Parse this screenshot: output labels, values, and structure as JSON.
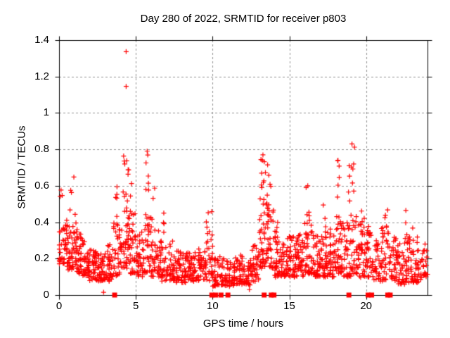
{
  "chart_data": {
    "type": "scatter",
    "title": "Day 280 of 2022, SRMTID for receiver p803",
    "xlabel": "GPS time / hours",
    "ylabel": "SRMTID / TECUs",
    "xlim": [
      0,
      24
    ],
    "ylim": [
      0,
      1.4
    ],
    "xticks": [
      [
        0,
        "0"
      ],
      [
        5,
        "5"
      ],
      [
        10,
        "10"
      ],
      [
        15,
        "15"
      ],
      [
        20,
        "20"
      ]
    ],
    "yticks": [
      [
        0,
        "0"
      ],
      [
        0.2,
        "0.2"
      ],
      [
        0.4,
        "0.4"
      ],
      [
        0.6,
        "0.6"
      ],
      [
        0.8,
        "0.8"
      ],
      [
        1,
        "1"
      ],
      [
        1.2,
        "1.2"
      ],
      [
        1.4,
        "1.4"
      ]
    ],
    "grid": {
      "show": true,
      "color": "#909090",
      "dash": [
        3,
        3
      ],
      "x_lines": [
        5,
        10,
        15,
        20
      ],
      "y_lines": [
        0.2,
        0.4,
        0.6,
        0.8,
        1.0,
        1.2
      ]
    },
    "legend": "none",
    "marker": {
      "shape": "plus",
      "color": "#ff0000",
      "size": 7
    },
    "background": "#ffffff",
    "border_color": "#000000",
    "series_description": "SRMTID (TECU) vs GPS time; quiet band ~0.05-0.4 with activity spikes near 04:30 (max 1.34), 06:00, 13:30, 16:15 and 18:00-19:30; red squares on the x-axis flag epochs with value 0",
    "seed": 280,
    "band_segments": [
      [
        0,
        0.5,
        38,
        0.17,
        0.42
      ],
      [
        0.5,
        1,
        45,
        0.14,
        0.4
      ],
      [
        1,
        1.5,
        45,
        0.12,
        0.35
      ],
      [
        1.5,
        2,
        40,
        0.1,
        0.3
      ],
      [
        2,
        2.5,
        40,
        0.08,
        0.26
      ],
      [
        2.5,
        3,
        40,
        0.08,
        0.24
      ],
      [
        3,
        3.5,
        35,
        0.08,
        0.28
      ],
      [
        3.5,
        4,
        35,
        0.1,
        0.4
      ],
      [
        4,
        4.5,
        40,
        0.15,
        0.55
      ],
      [
        4.5,
        5,
        40,
        0.12,
        0.45
      ],
      [
        5,
        5.5,
        35,
        0.1,
        0.38
      ],
      [
        5.5,
        6,
        35,
        0.12,
        0.45
      ],
      [
        6,
        6.5,
        35,
        0.1,
        0.4
      ],
      [
        6.5,
        7,
        35,
        0.08,
        0.35
      ],
      [
        7,
        7.5,
        35,
        0.08,
        0.3
      ],
      [
        7.5,
        8,
        35,
        0.07,
        0.25
      ],
      [
        8,
        8.5,
        35,
        0.07,
        0.24
      ],
      [
        8.5,
        9,
        35,
        0.07,
        0.24
      ],
      [
        9,
        9.5,
        35,
        0.08,
        0.26
      ],
      [
        9.5,
        10,
        35,
        0.08,
        0.35
      ],
      [
        10,
        10.5,
        35,
        0.05,
        0.22
      ],
      [
        10.5,
        11,
        35,
        0.05,
        0.2
      ],
      [
        11,
        11.5,
        35,
        0.05,
        0.2
      ],
      [
        11.5,
        12,
        35,
        0.06,
        0.22
      ],
      [
        12,
        12.5,
        35,
        0.06,
        0.22
      ],
      [
        12.5,
        13,
        35,
        0.08,
        0.28
      ],
      [
        13,
        13.5,
        40,
        0.15,
        0.55
      ],
      [
        13.5,
        14,
        40,
        0.15,
        0.5
      ],
      [
        14,
        14.5,
        40,
        0.1,
        0.35
      ],
      [
        14.5,
        15,
        40,
        0.1,
        0.32
      ],
      [
        15,
        15.5,
        40,
        0.1,
        0.33
      ],
      [
        15.5,
        16,
        40,
        0.1,
        0.35
      ],
      [
        16,
        16.5,
        40,
        0.12,
        0.4
      ],
      [
        16.5,
        17,
        40,
        0.1,
        0.35
      ],
      [
        17,
        17.5,
        40,
        0.1,
        0.35
      ],
      [
        17.5,
        18,
        40,
        0.1,
        0.38
      ],
      [
        18,
        18.5,
        40,
        0.12,
        0.45
      ],
      [
        18.5,
        19,
        35,
        0.1,
        0.4
      ],
      [
        19,
        19.5,
        35,
        0.12,
        0.45
      ],
      [
        19.5,
        20,
        35,
        0.1,
        0.4
      ],
      [
        20,
        20.5,
        35,
        0.1,
        0.38
      ],
      [
        20.5,
        21,
        30,
        0.08,
        0.3
      ],
      [
        21,
        21.5,
        35,
        0.08,
        0.38
      ],
      [
        21.5,
        22,
        35,
        0.08,
        0.32
      ],
      [
        22,
        22.5,
        35,
        0.06,
        0.28
      ],
      [
        22.5,
        23,
        35,
        0.07,
        0.32
      ],
      [
        23,
        23.5,
        35,
        0.07,
        0.3
      ],
      [
        23.5,
        24,
        30,
        0.08,
        0.28
      ]
    ],
    "spike_tails": [
      [
        0.3,
        0.25,
        3,
        0.42,
        0.62
      ],
      [
        0.9,
        0.2,
        4,
        0.4,
        0.66
      ],
      [
        1.15,
        0.15,
        3,
        0.35,
        0.5
      ],
      [
        3.85,
        0.2,
        5,
        0.4,
        0.62
      ],
      [
        4.35,
        0.2,
        9,
        0.55,
        0.85
      ],
      [
        4.6,
        0.2,
        4,
        0.45,
        0.62
      ],
      [
        5.78,
        0.15,
        6,
        0.45,
        0.78
      ],
      [
        6.1,
        0.15,
        4,
        0.4,
        0.6
      ],
      [
        6.8,
        0.2,
        3,
        0.35,
        0.47
      ],
      [
        9.75,
        0.2,
        4,
        0.35,
        0.5
      ],
      [
        13.3,
        0.15,
        9,
        0.55,
        0.76
      ],
      [
        13.65,
        0.15,
        6,
        0.5,
        0.72
      ],
      [
        14.2,
        0.2,
        3,
        0.35,
        0.42
      ],
      [
        16.2,
        0.12,
        5,
        0.4,
        0.6
      ],
      [
        17.2,
        0.2,
        3,
        0.35,
        0.5
      ],
      [
        18.2,
        0.1,
        5,
        0.45,
        0.74
      ],
      [
        18.9,
        0.1,
        3,
        0.4,
        0.7
      ],
      [
        19.1,
        0.15,
        6,
        0.45,
        0.82
      ],
      [
        19.8,
        0.2,
        3,
        0.4,
        0.47
      ],
      [
        21.3,
        0.2,
        3,
        0.38,
        0.47
      ],
      [
        22.6,
        0.2,
        3,
        0.32,
        0.49
      ],
      [
        23.2,
        0.2,
        2,
        0.3,
        0.38
      ]
    ],
    "outliers": [
      [
        4.37,
        1.337
      ],
      [
        4.37,
        1.146
      ],
      [
        2.9,
        0.015
      ],
      [
        12.4,
        0.03
      ],
      [
        5.74,
        0.79
      ],
      [
        13.28,
        0.77
      ],
      [
        16.2,
        0.6
      ],
      [
        18.17,
        0.74
      ],
      [
        18.9,
        0.71
      ],
      [
        19.08,
        0.83
      ]
    ],
    "zero_flags": {
      "shape": "square",
      "color": "#ff0000",
      "size": 7,
      "x": [
        3.62,
        9.95,
        10.2,
        10.55,
        11.0,
        13.36,
        13.82,
        14.0,
        18.88,
        20.13,
        20.36,
        21.41,
        21.57
      ]
    }
  }
}
